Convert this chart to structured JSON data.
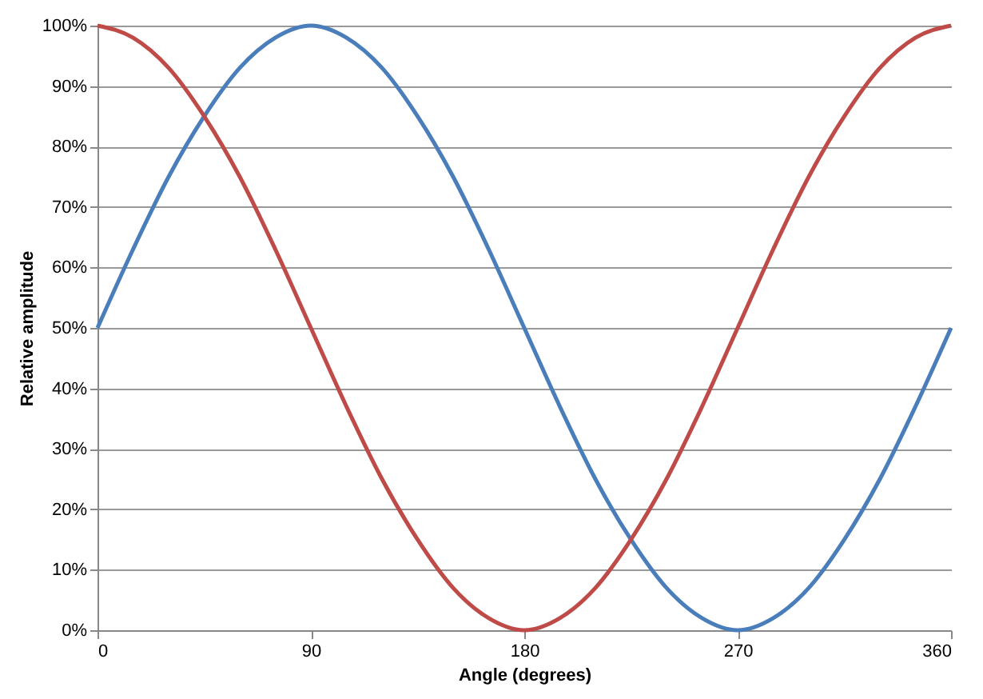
{
  "chart_data": {
    "type": "line",
    "xlabel": "Angle (degrees)",
    "ylabel": "Relative amplitude",
    "x": [
      0,
      15,
      30,
      45,
      60,
      75,
      90,
      105,
      120,
      135,
      150,
      165,
      180,
      195,
      210,
      225,
      240,
      255,
      270,
      285,
      300,
      315,
      330,
      345,
      360
    ],
    "series": [
      {
        "color": "#4a7ebb",
        "values": [
          50,
          63,
          75,
          85,
          93,
          98,
          100,
          98,
          93,
          85,
          75,
          63,
          50,
          37,
          25,
          15,
          7,
          2,
          0,
          2,
          7,
          15,
          25,
          37,
          50
        ]
      },
      {
        "color": "#be4b48",
        "values": [
          100,
          98,
          93,
          85,
          75,
          63,
          50,
          37,
          25,
          15,
          7,
          2,
          0,
          2,
          7,
          15,
          25,
          37,
          50,
          63,
          75,
          85,
          93,
          98,
          100
        ]
      }
    ],
    "xlim": [
      0,
      360
    ],
    "xticks": [
      0,
      90,
      180,
      270,
      360
    ],
    "ylim": [
      0,
      100
    ],
    "yticks": [
      {
        "value": 0,
        "label": "0%"
      },
      {
        "value": 10,
        "label": "10%"
      },
      {
        "value": 20,
        "label": "20%"
      },
      {
        "value": 30,
        "label": "30%"
      },
      {
        "value": 40,
        "label": "40%"
      },
      {
        "value": 50,
        "label": "50%"
      },
      {
        "value": 60,
        "label": "60%"
      },
      {
        "value": 70,
        "label": "70%"
      },
      {
        "value": 80,
        "label": "80%"
      },
      {
        "value": 90,
        "label": "90%"
      },
      {
        "value": 100,
        "label": "100%"
      }
    ],
    "grid": "y",
    "legend": false,
    "marker": "none",
    "line_style": "solid"
  }
}
